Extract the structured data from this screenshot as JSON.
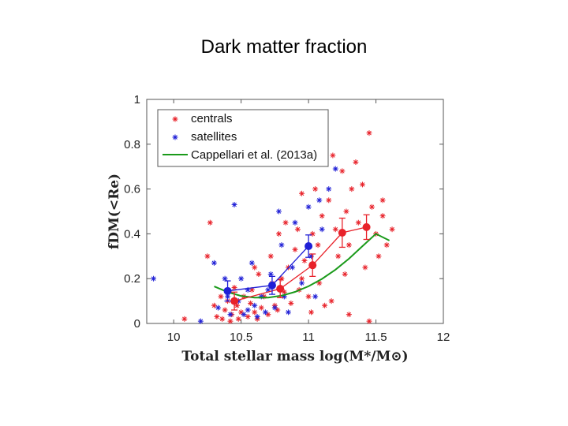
{
  "page": {
    "title": "Dark matter fraction"
  },
  "chart_data": {
    "type": "scatter",
    "title": "Dark matter fraction",
    "xlabel": "Total stellar mass log(M*/M⊙)",
    "ylabel": "fDM(<Re)",
    "xlim": [
      9.8,
      12
    ],
    "ylim": [
      0,
      1
    ],
    "xticks": [
      "10",
      "10.5",
      "11",
      "11.5",
      "12"
    ],
    "yticks": [
      "0",
      "0.2",
      "0.4",
      "0.6",
      "0.8",
      "1"
    ],
    "legend": {
      "placement": "top-left",
      "entries": [
        "centrals",
        "satellites",
        "Cappellari et al. (2013a)"
      ]
    },
    "colors": {
      "centrals": "#e8222a",
      "satellites": "#1f1fd6",
      "cappellari": "#1a9a1a"
    },
    "series": [
      {
        "name": "centrals",
        "kind": "points",
        "x": [
          10.08,
          10.27,
          10.3,
          10.32,
          10.35,
          10.36,
          10.38,
          10.4,
          10.42,
          10.43,
          10.45,
          10.47,
          10.48,
          10.5,
          10.52,
          10.55,
          10.57,
          10.58,
          10.6,
          10.62,
          10.63,
          10.65,
          10.67,
          10.7,
          10.72,
          10.73,
          10.75,
          10.77,
          10.78,
          10.8,
          10.82,
          10.83,
          10.85,
          10.87,
          10.9,
          10.92,
          10.93,
          10.95,
          10.97,
          11.0,
          11.02,
          11.03,
          11.05,
          11.07,
          11.08,
          11.1,
          11.12,
          11.15,
          11.17,
          11.18,
          11.2,
          11.22,
          11.25,
          11.27,
          11.28,
          11.3,
          11.32,
          11.35,
          11.37,
          11.4,
          11.42,
          11.45,
          11.47,
          11.5,
          11.52,
          11.55,
          11.58,
          11.62,
          11.45,
          10.25,
          10.6,
          10.95,
          11.3,
          11.55
        ],
        "y": [
          0.02,
          0.45,
          0.08,
          0.03,
          0.12,
          0.02,
          0.06,
          0.1,
          0.01,
          0.04,
          0.16,
          0.08,
          0.02,
          0.05,
          0.12,
          0.03,
          0.09,
          0.15,
          0.05,
          0.02,
          0.22,
          0.07,
          0.12,
          0.04,
          0.3,
          0.18,
          0.08,
          0.06,
          0.4,
          0.2,
          0.14,
          0.45,
          0.25,
          0.09,
          0.33,
          0.42,
          0.15,
          0.58,
          0.28,
          0.12,
          0.05,
          0.4,
          0.6,
          0.35,
          0.18,
          0.48,
          0.08,
          0.55,
          0.1,
          0.75,
          0.42,
          0.3,
          0.68,
          0.22,
          0.5,
          0.35,
          0.6,
          0.72,
          0.45,
          0.62,
          0.25,
          0.85,
          0.52,
          0.4,
          0.3,
          0.55,
          0.35,
          0.42,
          0.01,
          0.3,
          0.25,
          0.2,
          0.04,
          0.48
        ]
      },
      {
        "name": "satellites",
        "kind": "points",
        "x": [
          9.85,
          10.2,
          10.3,
          10.33,
          10.38,
          10.4,
          10.42,
          10.45,
          10.48,
          10.5,
          10.52,
          10.55,
          10.58,
          10.6,
          10.62,
          10.65,
          10.68,
          10.7,
          10.72,
          10.75,
          10.78,
          10.8,
          10.82,
          10.85,
          10.88,
          10.9,
          10.95,
          11.0,
          11.02,
          11.05,
          11.08,
          11.1,
          11.15,
          11.2,
          10.55
        ],
        "y": [
          0.2,
          0.01,
          0.27,
          0.07,
          0.2,
          0.12,
          0.04,
          0.53,
          0.1,
          0.2,
          0.04,
          0.15,
          0.27,
          0.08,
          0.03,
          0.12,
          0.05,
          0.15,
          0.22,
          0.07,
          0.5,
          0.35,
          0.12,
          0.05,
          0.25,
          0.45,
          0.18,
          0.52,
          0.3,
          0.12,
          0.55,
          0.42,
          0.6,
          0.69,
          0.06
        ]
      },
      {
        "name": "centrals (binned)",
        "kind": "binned",
        "x": [
          10.45,
          10.79,
          11.03,
          11.25,
          11.43
        ],
        "y": [
          0.1,
          0.155,
          0.26,
          0.405,
          0.43
        ],
        "yerr": [
          0.04,
          0.04,
          0.05,
          0.065,
          0.055
        ]
      },
      {
        "name": "satellites (binned)",
        "kind": "binned",
        "x": [
          10.4,
          10.73,
          11.0
        ],
        "y": [
          0.145,
          0.17,
          0.345
        ],
        "yerr": [
          0.045,
          0.04,
          0.05
        ]
      },
      {
        "name": "Cappellari et al. (2013a)",
        "kind": "curve",
        "x": [
          10.3,
          10.4,
          10.5,
          10.6,
          10.7,
          10.8,
          10.9,
          11.0,
          11.1,
          11.2,
          11.3,
          11.4,
          11.5,
          11.6
        ],
        "y": [
          0.165,
          0.14,
          0.123,
          0.115,
          0.115,
          0.124,
          0.141,
          0.166,
          0.199,
          0.24,
          0.289,
          0.345,
          0.4,
          0.37
        ]
      }
    ]
  }
}
